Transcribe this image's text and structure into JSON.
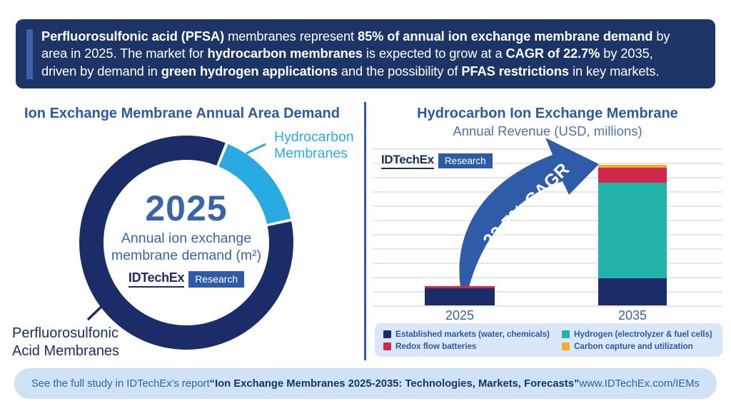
{
  "banner": {
    "lines": [
      [
        {
          "t": "Perfluorosulfonic acid (PFSA)",
          "b": true
        },
        {
          "t": " membranes represent ",
          "b": false
        },
        {
          "t": "85% of annual ion exchange membrane demand",
          "b": true
        },
        {
          "t": " by",
          "b": false
        }
      ],
      [
        {
          "t": "area in 2025. The market for ",
          "b": false
        },
        {
          "t": "hydrocarbon membranes",
          "b": true
        },
        {
          "t": " is expected to grow at a ",
          "b": false
        },
        {
          "t": "CAGR of 22.7%",
          "b": true
        },
        {
          "t": " by 2035,",
          "b": false
        }
      ],
      [
        {
          "t": "driven by demand in ",
          "b": false
        },
        {
          "t": "green hydrogen applications",
          "b": true
        },
        {
          "t": " and the possibility of ",
          "b": false
        },
        {
          "t": "PFAS restrictions",
          "b": true
        },
        {
          "t": " in key markets.",
          "b": false
        }
      ]
    ]
  },
  "left_panel": {
    "title": "Ion Exchange Membrane Annual Area Demand",
    "center_year": "2025",
    "center_subtitle": "Annual ion exchange\nmembrane demand (m²)",
    "label_hydrocarbon": "Hydrocarbon\nMembranes",
    "label_pfsa": "Perfluorosulfonic\nAcid Membranes"
  },
  "right_panel": {
    "title": "Hydrocarbon Ion Exchange Membrane",
    "subtitle": "Annual Revenue (USD, millions)",
    "cagr_label": "22.7% CAGR"
  },
  "logo": {
    "name": "IDTechEx",
    "suffix": "Research"
  },
  "footer": {
    "segments": [
      {
        "t": "See the full study in IDTechEx's report ",
        "b": false
      },
      {
        "t": "“Ion Exchange Membranes 2025-2035: Technologies, Markets, Forecasts”",
        "b": true,
        "name": "report-title"
      },
      {
        "t": " www.IDTechEx.com/IEMs",
        "b": false,
        "link": true,
        "name": "report-url"
      }
    ]
  },
  "colors": {
    "banner_bg": "#1d3466",
    "banner_accent": "#3e61a9",
    "title_blue": "#2b5aa4",
    "center_blue": "#3a63a9",
    "navy": "#1b2d69",
    "cyan": "#29abe2",
    "teal": "#21b2a8",
    "red": "#d0294e",
    "orange": "#f7a827",
    "arrow_blue": "#2f5ca9",
    "gridline": "#e2e5ea",
    "legend_bg": "#d9e7f8",
    "footer_bg": "#cfe2f6",
    "logo_badge_bg": "#2e5ba7",
    "white": "#ffffff"
  },
  "chart_data": [
    {
      "type": "pie",
      "donut": true,
      "title": "Ion Exchange Membrane Annual Area Demand",
      "subtitle": "Annual ion exchange membrane demand (m²), 2025",
      "labels": [
        "Perfluorosulfonic Acid Membranes",
        "Hydrocarbon Membranes"
      ],
      "values": [
        85,
        15
      ],
      "units": "percent of annual area demand",
      "colors": [
        "#1b2d69",
        "#29abe2"
      ]
    },
    {
      "type": "bar",
      "stacked": true,
      "title": "Hydrocarbon Ion Exchange Membrane Annual Revenue (USD, millions)",
      "categories": [
        "2025",
        "2035"
      ],
      "series": [
        {
          "name": "Established markets (water, chemicals)",
          "color": "#1b2d69",
          "values": [
            1.2,
            1.9
          ]
        },
        {
          "name": "Hydrogen (electrolyzer & fuel cells)",
          "color": "#21b2a8",
          "values": [
            0,
            6.7
          ]
        },
        {
          "name": "Redox flow batteries",
          "color": "#d0294e",
          "values": [
            0.15,
            1.05
          ]
        },
        {
          "name": "Carbon capture and utilization",
          "color": "#f7a827",
          "values": [
            0,
            0.2
          ]
        }
      ],
      "ylabel": "Annual revenue (USD, millions)",
      "note": "No numeric y-axis labels shown; values estimated in gridline units (1 unit = 1 gridline spacing).",
      "annotation": "22.7% CAGR",
      "grid": true,
      "legend_position": "bottom"
    }
  ]
}
